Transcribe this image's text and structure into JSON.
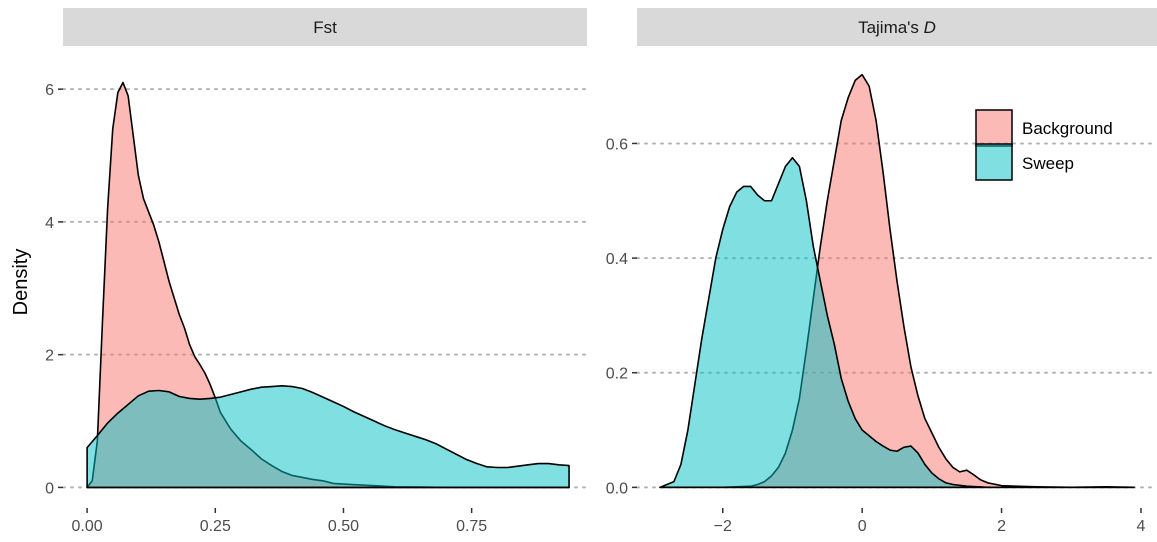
{
  "chart_data": {
    "type": "area",
    "ylabel": "Density",
    "colors": {
      "Background": "#F8766D",
      "Sweep": "#00BFC4",
      "overlap": "#7fb0ab",
      "strip": "#d9d9d9",
      "grid": "#b3b3b3"
    },
    "fill_alpha": 0.5,
    "legend": {
      "position": "top-right",
      "entries": [
        "Background",
        "Sweep"
      ]
    },
    "panels": [
      {
        "name": "fst",
        "strip_label": "Fst",
        "xlim": [
          -0.047,
          0.975
        ],
        "ylim": [
          -0.31,
          6.65
        ],
        "x_ticks": [
          0.0,
          0.25,
          0.5,
          0.75
        ],
        "x_tick_labels": [
          "0.00",
          "0.25",
          "0.50",
          "0.75"
        ],
        "y_ticks": [
          0,
          2,
          4,
          6
        ],
        "y_tick_labels": [
          "0",
          "2",
          "4",
          "6"
        ],
        "grid_y": true,
        "series": [
          {
            "name": "Background",
            "points": [
              [
                0.0,
                0.0
              ],
              [
                0.01,
                0.1
              ],
              [
                0.02,
                0.7
              ],
              [
                0.03,
                2.5
              ],
              [
                0.04,
                4.2
              ],
              [
                0.05,
                5.4
              ],
              [
                0.06,
                5.95
              ],
              [
                0.07,
                6.1
              ],
              [
                0.08,
                5.9
              ],
              [
                0.09,
                5.3
              ],
              [
                0.1,
                4.7
              ],
              [
                0.11,
                4.35
              ],
              [
                0.12,
                4.15
              ],
              [
                0.13,
                3.95
              ],
              [
                0.14,
                3.7
              ],
              [
                0.15,
                3.4
              ],
              [
                0.16,
                3.1
              ],
              [
                0.17,
                2.85
              ],
              [
                0.18,
                2.6
              ],
              [
                0.19,
                2.4
              ],
              [
                0.2,
                2.15
              ],
              [
                0.21,
                1.97
              ],
              [
                0.22,
                1.85
              ],
              [
                0.23,
                1.72
              ],
              [
                0.24,
                1.55
              ],
              [
                0.25,
                1.35
              ],
              [
                0.26,
                1.13
              ],
              [
                0.28,
                0.88
              ],
              [
                0.3,
                0.7
              ],
              [
                0.32,
                0.57
              ],
              [
                0.34,
                0.43
              ],
              [
                0.36,
                0.33
              ],
              [
                0.38,
                0.24
              ],
              [
                0.4,
                0.18
              ],
              [
                0.42,
                0.15
              ],
              [
                0.44,
                0.12
              ],
              [
                0.46,
                0.1
              ],
              [
                0.48,
                0.06
              ],
              [
                0.5,
                0.05
              ],
              [
                0.55,
                0.03
              ],
              [
                0.6,
                0.01
              ],
              [
                0.65,
                0.005
              ],
              [
                0.7,
                0.0
              ],
              [
                0.8,
                0.0
              ],
              [
                0.9,
                0.0
              ],
              [
                0.94,
                0.0
              ]
            ]
          },
          {
            "name": "Sweep",
            "points": [
              [
                0.0,
                0.6
              ],
              [
                0.02,
                0.78
              ],
              [
                0.04,
                0.97
              ],
              [
                0.06,
                1.12
              ],
              [
                0.08,
                1.25
              ],
              [
                0.1,
                1.38
              ],
              [
                0.12,
                1.45
              ],
              [
                0.14,
                1.46
              ],
              [
                0.16,
                1.44
              ],
              [
                0.18,
                1.37
              ],
              [
                0.2,
                1.34
              ],
              [
                0.22,
                1.33
              ],
              [
                0.24,
                1.34
              ],
              [
                0.26,
                1.36
              ],
              [
                0.28,
                1.4
              ],
              [
                0.3,
                1.44
              ],
              [
                0.32,
                1.48
              ],
              [
                0.34,
                1.51
              ],
              [
                0.36,
                1.52
              ],
              [
                0.38,
                1.53
              ],
              [
                0.4,
                1.52
              ],
              [
                0.42,
                1.49
              ],
              [
                0.44,
                1.43
              ],
              [
                0.46,
                1.36
              ],
              [
                0.48,
                1.29
              ],
              [
                0.5,
                1.22
              ],
              [
                0.52,
                1.14
              ],
              [
                0.54,
                1.07
              ],
              [
                0.56,
                1.0
              ],
              [
                0.58,
                0.93
              ],
              [
                0.6,
                0.87
              ],
              [
                0.62,
                0.82
              ],
              [
                0.64,
                0.77
              ],
              [
                0.66,
                0.72
              ],
              [
                0.68,
                0.66
              ],
              [
                0.7,
                0.58
              ],
              [
                0.72,
                0.5
              ],
              [
                0.74,
                0.42
              ],
              [
                0.76,
                0.36
              ],
              [
                0.78,
                0.31
              ],
              [
                0.8,
                0.3
              ],
              [
                0.82,
                0.3
              ],
              [
                0.84,
                0.32
              ],
              [
                0.86,
                0.34
              ],
              [
                0.88,
                0.36
              ],
              [
                0.9,
                0.36
              ],
              [
                0.92,
                0.34
              ],
              [
                0.94,
                0.33
              ]
            ]
          }
        ]
      },
      {
        "name": "tajimas-d",
        "strip_label": "Tajima's ",
        "strip_label_italic": "D",
        "xlim": [
          -3.23,
          4.23
        ],
        "ylim": [
          -0.036,
          0.77
        ],
        "x_ticks": [
          -2,
          0,
          2,
          4
        ],
        "x_tick_labels": [
          "−2",
          "0",
          "2",
          "4"
        ],
        "y_ticks": [
          0.0,
          0.2,
          0.4,
          0.6
        ],
        "y_tick_labels": [
          "0.0",
          "0.2",
          "0.4",
          "0.6"
        ],
        "grid_y": true,
        "series": [
          {
            "name": "Background",
            "points": [
              [
                -2.9,
                0.0
              ],
              [
                -2.0,
                0.0
              ],
              [
                -1.6,
                0.002
              ],
              [
                -1.5,
                0.005
              ],
              [
                -1.4,
                0.01
              ],
              [
                -1.3,
                0.02
              ],
              [
                -1.2,
                0.035
              ],
              [
                -1.1,
                0.06
              ],
              [
                -1.0,
                0.1
              ],
              [
                -0.9,
                0.155
              ],
              [
                -0.8,
                0.24
              ],
              [
                -0.7,
                0.33
              ],
              [
                -0.6,
                0.42
              ],
              [
                -0.5,
                0.5
              ],
              [
                -0.4,
                0.57
              ],
              [
                -0.3,
                0.64
              ],
              [
                -0.2,
                0.68
              ],
              [
                -0.1,
                0.71
              ],
              [
                0.0,
                0.72
              ],
              [
                0.1,
                0.7
              ],
              [
                0.2,
                0.64
              ],
              [
                0.3,
                0.55
              ],
              [
                0.4,
                0.45
              ],
              [
                0.5,
                0.36
              ],
              [
                0.6,
                0.28
              ],
              [
                0.7,
                0.21
              ],
              [
                0.8,
                0.16
              ],
              [
                0.9,
                0.12
              ],
              [
                1.0,
                0.095
              ],
              [
                1.1,
                0.07
              ],
              [
                1.2,
                0.05
              ],
              [
                1.3,
                0.035
              ],
              [
                1.4,
                0.027
              ],
              [
                1.5,
                0.03
              ],
              [
                1.6,
                0.022
              ],
              [
                1.7,
                0.013
              ],
              [
                1.8,
                0.008
              ],
              [
                2.0,
                0.003
              ],
              [
                2.2,
                0.002
              ],
              [
                2.5,
                0.001
              ],
              [
                3.0,
                0.0
              ],
              [
                3.5,
                0.001
              ],
              [
                3.9,
                0.0
              ]
            ]
          },
          {
            "name": "Sweep",
            "points": [
              [
                -2.9,
                0.0
              ],
              [
                -2.8,
                0.005
              ],
              [
                -2.7,
                0.01
              ],
              [
                -2.6,
                0.04
              ],
              [
                -2.5,
                0.1
              ],
              [
                -2.4,
                0.18
              ],
              [
                -2.3,
                0.26
              ],
              [
                -2.2,
                0.33
              ],
              [
                -2.1,
                0.4
              ],
              [
                -2.0,
                0.45
              ],
              [
                -1.9,
                0.49
              ],
              [
                -1.8,
                0.515
              ],
              [
                -1.7,
                0.525
              ],
              [
                -1.6,
                0.525
              ],
              [
                -1.5,
                0.51
              ],
              [
                -1.4,
                0.5
              ],
              [
                -1.3,
                0.5
              ],
              [
                -1.2,
                0.53
              ],
              [
                -1.1,
                0.56
              ],
              [
                -1.0,
                0.575
              ],
              [
                -0.9,
                0.56
              ],
              [
                -0.8,
                0.5
              ],
              [
                -0.7,
                0.42
              ],
              [
                -0.6,
                0.36
              ],
              [
                -0.5,
                0.3
              ],
              [
                -0.4,
                0.25
              ],
              [
                -0.3,
                0.19
              ],
              [
                -0.2,
                0.15
              ],
              [
                -0.1,
                0.12
              ],
              [
                0.0,
                0.1
              ],
              [
                0.1,
                0.09
              ],
              [
                0.2,
                0.08
              ],
              [
                0.3,
                0.072
              ],
              [
                0.4,
                0.065
              ],
              [
                0.5,
                0.063
              ],
              [
                0.6,
                0.07
              ],
              [
                0.7,
                0.072
              ],
              [
                0.8,
                0.06
              ],
              [
                0.9,
                0.04
              ],
              [
                1.0,
                0.025
              ],
              [
                1.1,
                0.015
              ],
              [
                1.2,
                0.008
              ],
              [
                1.3,
                0.005
              ],
              [
                1.5,
                0.002
              ],
              [
                1.8,
                0.0
              ],
              [
                3.9,
                0.0
              ]
            ]
          }
        ]
      }
    ]
  }
}
